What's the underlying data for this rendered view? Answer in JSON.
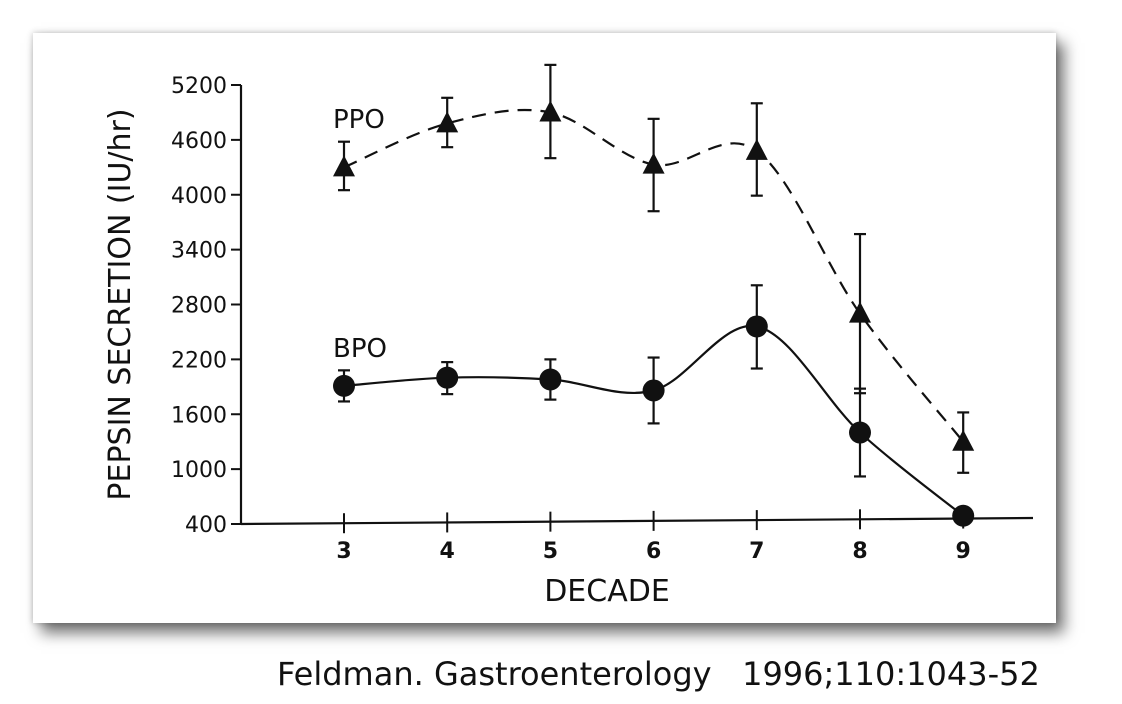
{
  "chart_data": {
    "type": "line",
    "xlabel": "DECADE",
    "ylabel": "PEPSIN SECRETION (IU/hr)",
    "x": [
      3,
      4,
      5,
      6,
      7,
      8,
      9
    ],
    "xticks": [
      "3",
      "4",
      "5",
      "6",
      "7",
      "8",
      "9"
    ],
    "yticks": [
      "400",
      "1000",
      "1600",
      "2200",
      "2800",
      "3400",
      "4000",
      "4600",
      "5200"
    ],
    "ylim": [
      400,
      5200
    ],
    "grid": false,
    "series": [
      {
        "name": "PPO",
        "marker": "triangle",
        "line": "dashed",
        "values": [
          4300,
          4780,
          4900,
          4330,
          4480,
          2700,
          1300
        ],
        "err_low": [
          4050,
          4520,
          4400,
          3820,
          3990,
          1830,
          960
        ],
        "err_high": [
          4580,
          5060,
          5420,
          4830,
          5000,
          3570,
          1620
        ]
      },
      {
        "name": "BPO",
        "marker": "circle",
        "line": "solid",
        "values": [
          1910,
          2000,
          1980,
          1860,
          2560,
          1400,
          490
        ],
        "err_low": [
          1740,
          1820,
          1760,
          1500,
          2100,
          920,
          null
        ],
        "err_high": [
          2080,
          2170,
          2200,
          2220,
          3010,
          1880,
          null
        ]
      }
    ]
  },
  "citation": "Feldman. Gastroenterology   1996;110:1043-52"
}
